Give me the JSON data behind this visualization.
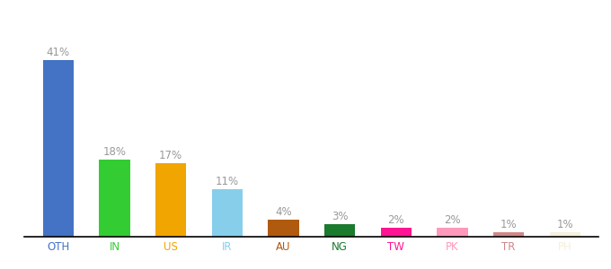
{
  "categories": [
    "OTH",
    "IN",
    "US",
    "IR",
    "AU",
    "NG",
    "TW",
    "PK",
    "TR",
    "PH"
  ],
  "values": [
    41,
    18,
    17,
    11,
    4,
    3,
    2,
    2,
    1,
    1
  ],
  "bar_colors": [
    "#4472c4",
    "#33cc33",
    "#f0a500",
    "#87ceeb",
    "#b05a10",
    "#1a7a2e",
    "#ff1493",
    "#ff99bb",
    "#d08888",
    "#f5f0dc"
  ],
  "labels": [
    "41%",
    "18%",
    "17%",
    "11%",
    "4%",
    "3%",
    "2%",
    "2%",
    "1%",
    "1%"
  ],
  "background_color": "#ffffff",
  "label_color": "#999999",
  "label_fontsize": 8.5,
  "tick_fontsize": 8.5,
  "tick_color": "#4472c4",
  "ylim": [
    0,
    50
  ],
  "bar_width": 0.55
}
